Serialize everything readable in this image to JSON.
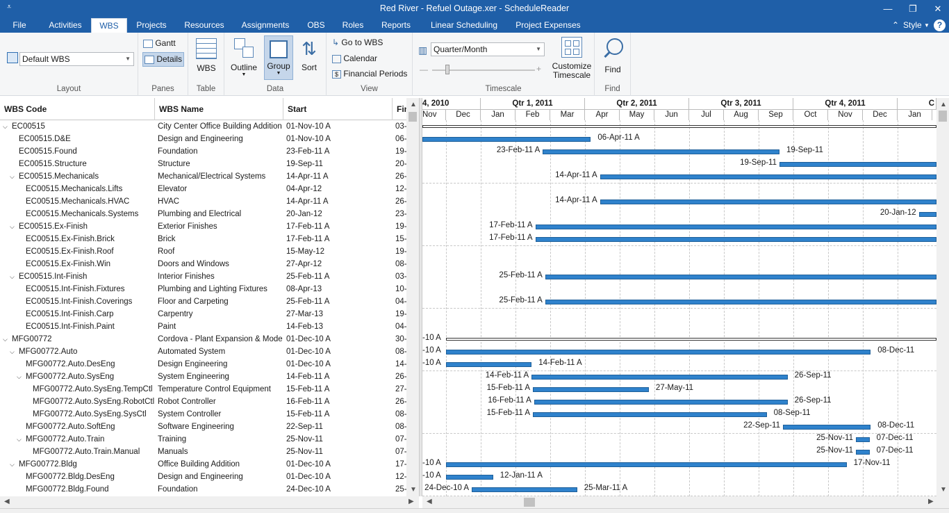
{
  "window": {
    "title": "Red River - Refuel Outage.xer - ScheduleReader",
    "quick_access": "⩡",
    "minimize": "—",
    "restore": "❐",
    "close": "✕"
  },
  "menu": {
    "tabs": [
      "File",
      "Activities",
      "WBS",
      "Projects",
      "Resources",
      "Assignments",
      "OBS",
      "Roles",
      "Reports",
      "Linear Scheduling",
      "Project Expenses"
    ],
    "active": "WBS",
    "style_label": "Style",
    "help_label": "?"
  },
  "ribbon": {
    "layout": {
      "value": "Default WBS",
      "label": "Layout"
    },
    "panes": {
      "gantt": "Gantt",
      "details": "Details",
      "label": "Panes"
    },
    "table": {
      "wbs": "WBS",
      "label": "Table"
    },
    "data": {
      "outline": "Outline",
      "group": "Group",
      "sort": "Sort",
      "label": "Data"
    },
    "view": {
      "goto": "Go to WBS",
      "calendar": "Calendar",
      "financial": "Financial Periods",
      "label": "View"
    },
    "timescale": {
      "value": "Quarter/Month",
      "customize_1": "Customize",
      "customize_2": "Timescale",
      "label": "Timescale"
    },
    "find": {
      "button": "Find",
      "label": "Find"
    }
  },
  "grid": {
    "columns": [
      "WBS Code",
      "WBS Name",
      "Start",
      "Fin"
    ],
    "rows": [
      {
        "code": "EC00515",
        "name": "City Center Office Building Addition",
        "start": "01-Nov-10 A",
        "fin": "03-",
        "level": 0,
        "exp": true
      },
      {
        "code": "EC00515.D&E",
        "name": "Design and Engineering",
        "start": "01-Nov-10 A",
        "fin": "06-",
        "level": 1,
        "exp": false
      },
      {
        "code": "EC00515.Found",
        "name": "Foundation",
        "start": "23-Feb-11 A",
        "fin": "19-",
        "level": 1,
        "exp": false
      },
      {
        "code": "EC00515.Structure",
        "name": "Structure",
        "start": "19-Sep-11",
        "fin": "20-",
        "level": 1,
        "exp": false
      },
      {
        "code": "EC00515.Mechanicals",
        "name": "Mechanical/Electrical Systems",
        "start": "14-Apr-11 A",
        "fin": "26-",
        "level": 1,
        "exp": true
      },
      {
        "code": "EC00515.Mechanicals.Lifts",
        "name": "Elevator",
        "start": "04-Apr-12",
        "fin": "12-",
        "level": 2,
        "exp": false
      },
      {
        "code": "EC00515.Mechanicals.HVAC",
        "name": "HVAC",
        "start": "14-Apr-11 A",
        "fin": "26-",
        "level": 2,
        "exp": false
      },
      {
        "code": "EC00515.Mechanicals.Systems",
        "name": "Plumbing and Electrical",
        "start": "20-Jan-12",
        "fin": "23-",
        "level": 2,
        "exp": false
      },
      {
        "code": "EC00515.Ex-Finish",
        "name": "Exterior Finishes",
        "start": "17-Feb-11 A",
        "fin": "19-",
        "level": 1,
        "exp": true
      },
      {
        "code": "EC00515.Ex-Finish.Brick",
        "name": "Brick",
        "start": "17-Feb-11 A",
        "fin": "15-",
        "level": 2,
        "exp": false
      },
      {
        "code": "EC00515.Ex-Finish.Roof",
        "name": "Roof",
        "start": "15-May-12",
        "fin": "19-",
        "level": 2,
        "exp": false
      },
      {
        "code": "EC00515.Ex-Finish.Win",
        "name": "Doors and Windows",
        "start": "27-Apr-12",
        "fin": "08-",
        "level": 2,
        "exp": false
      },
      {
        "code": "EC00515.Int-Finish",
        "name": "Interior Finishes",
        "start": "25-Feb-11 A",
        "fin": "03-",
        "level": 1,
        "exp": true
      },
      {
        "code": "EC00515.Int-Finish.Fixtures",
        "name": "Plumbing and Lighting Fixtures",
        "start": "08-Apr-13",
        "fin": "10-",
        "level": 2,
        "exp": false
      },
      {
        "code": "EC00515.Int-Finish.Coverings",
        "name": "Floor and Carpeting",
        "start": "25-Feb-11 A",
        "fin": "04-",
        "level": 2,
        "exp": false
      },
      {
        "code": "EC00515.Int-Finish.Carp",
        "name": "Carpentry",
        "start": "27-Mar-13",
        "fin": "19-",
        "level": 2,
        "exp": false
      },
      {
        "code": "EC00515.Int-Finish.Paint",
        "name": "Paint",
        "start": "14-Feb-13",
        "fin": "04-",
        "level": 2,
        "exp": false
      },
      {
        "code": "MFG00772",
        "name": "Cordova - Plant Expansion & Moderni",
        "start": "01-Dec-10 A",
        "fin": "30-",
        "level": 0,
        "exp": true
      },
      {
        "code": "MFG00772.Auto",
        "name": "Automated System",
        "start": "01-Dec-10 A",
        "fin": "08-",
        "level": 1,
        "exp": true
      },
      {
        "code": "MFG00772.Auto.DesEng",
        "name": "Design Engineering",
        "start": "01-Dec-10 A",
        "fin": "14-",
        "level": 2,
        "exp": false
      },
      {
        "code": "MFG00772.Auto.SysEng",
        "name": "System Engineering",
        "start": "14-Feb-11 A",
        "fin": "26-",
        "level": 2,
        "exp": true
      },
      {
        "code": "MFG00772.Auto.SysEng.TempCtl",
        "name": "Temperature Control Equipment",
        "start": "15-Feb-11 A",
        "fin": "27-",
        "level": 3,
        "exp": false
      },
      {
        "code": "MFG00772.Auto.SysEng.RobotCtl",
        "name": "Robot Controller",
        "start": "16-Feb-11 A",
        "fin": "26-",
        "level": 3,
        "exp": false
      },
      {
        "code": "MFG00772.Auto.SysEng.SysCtl",
        "name": "System Controller",
        "start": "15-Feb-11 A",
        "fin": "08-",
        "level": 3,
        "exp": false
      },
      {
        "code": "MFG00772.Auto.SoftEng",
        "name": "Software Engineering",
        "start": "22-Sep-11",
        "fin": "08-",
        "level": 2,
        "exp": false
      },
      {
        "code": "MFG00772.Auto.Train",
        "name": "Training",
        "start": "25-Nov-11",
        "fin": "07-",
        "level": 2,
        "exp": true
      },
      {
        "code": "MFG00772.Auto.Train.Manual",
        "name": "Manuals",
        "start": "25-Nov-11",
        "fin": "07-",
        "level": 3,
        "exp": false
      },
      {
        "code": "MFG00772.Bldg",
        "name": "Office Building Addition",
        "start": "01-Dec-10 A",
        "fin": "17-",
        "level": 1,
        "exp": true
      },
      {
        "code": "MFG00772.Bldg.DesEng",
        "name": "Design and Engineering",
        "start": "01-Dec-10 A",
        "fin": "12-",
        "level": 2,
        "exp": false
      },
      {
        "code": "MFG00772.Bldg.Found",
        "name": "Foundation",
        "start": "24-Dec-10 A",
        "fin": "25-",
        "level": 2,
        "exp": false
      }
    ]
  },
  "timescale": {
    "quarters": [
      "4, 2010",
      "Qtr 1, 2011",
      "Qtr 2, 2011",
      "Qtr 3, 2011",
      "Qtr 4, 2011",
      "C"
    ],
    "months": [
      "Nov",
      "Dec",
      "Jan",
      "Feb",
      "Mar",
      "Apr",
      "May",
      "Jun",
      "Jul",
      "Aug",
      "Sep",
      "Oct",
      "Nov",
      "Dec",
      "Jan"
    ]
  },
  "bars": [
    {
      "row": 0,
      "type": "summary",
      "start": "2010-11-01",
      "end": null,
      "left": "",
      "right": ""
    },
    {
      "row": 1,
      "type": "bar",
      "start": "2010-11-01",
      "end": "2011-04-06",
      "left": "",
      "right": "06-Apr-11 A"
    },
    {
      "row": 2,
      "type": "bar",
      "start": "2011-02-23",
      "end": "2011-09-19",
      "left": "23-Feb-11 A",
      "right": "19-Sep-11"
    },
    {
      "row": 3,
      "type": "bar",
      "start": "2011-09-19",
      "end": null,
      "left": "19-Sep-11",
      "right": ""
    },
    {
      "row": 4,
      "type": "bar",
      "start": "2011-04-14",
      "end": null,
      "left": "14-Apr-11 A",
      "right": ""
    },
    {
      "row": 6,
      "type": "bar",
      "start": "2011-04-14",
      "end": null,
      "left": "14-Apr-11 A",
      "right": ""
    },
    {
      "row": 7,
      "type": "bar",
      "start": "2012-01-20",
      "end": null,
      "left": "20-Jan-12",
      "right": ""
    },
    {
      "row": 8,
      "type": "bar",
      "start": "2011-02-17",
      "end": null,
      "left": "17-Feb-11 A",
      "right": ""
    },
    {
      "row": 9,
      "type": "bar",
      "start": "2011-02-17",
      "end": null,
      "left": "17-Feb-11 A",
      "right": ""
    },
    {
      "row": 12,
      "type": "bar",
      "start": "2011-02-25",
      "end": null,
      "left": "25-Feb-11 A",
      "right": ""
    },
    {
      "row": 14,
      "type": "bar",
      "start": "2011-02-25",
      "end": null,
      "left": "25-Feb-11 A",
      "right": ""
    },
    {
      "row": 17,
      "type": "summary",
      "start": "2010-12-01",
      "end": null,
      "left": "-10 A",
      "right": ""
    },
    {
      "row": 18,
      "type": "bar",
      "start": "2010-12-01",
      "end": "2011-12-08",
      "left": "-10 A",
      "right": "08-Dec-11"
    },
    {
      "row": 19,
      "type": "bar",
      "start": "2010-12-01",
      "end": "2011-02-14",
      "left": "-10 A",
      "right": "14-Feb-11 A"
    },
    {
      "row": 20,
      "type": "bar",
      "start": "2011-02-14",
      "end": "2011-09-26",
      "left": "14-Feb-11 A",
      "right": "26-Sep-11"
    },
    {
      "row": 21,
      "type": "bar",
      "start": "2011-02-15",
      "end": "2011-05-27",
      "left": "15-Feb-11 A",
      "right": "27-May-11"
    },
    {
      "row": 22,
      "type": "bar",
      "start": "2011-02-16",
      "end": "2011-09-26",
      "left": "16-Feb-11 A",
      "right": "26-Sep-11"
    },
    {
      "row": 23,
      "type": "bar",
      "start": "2011-02-15",
      "end": "2011-09-08",
      "left": "15-Feb-11 A",
      "right": "08-Sep-11"
    },
    {
      "row": 24,
      "type": "bar",
      "start": "2011-09-22",
      "end": "2011-12-08",
      "left": "22-Sep-11",
      "right": "08-Dec-11"
    },
    {
      "row": 25,
      "type": "bar",
      "start": "2011-11-25",
      "end": "2011-12-07",
      "left": "25-Nov-11",
      "right": "07-Dec-11"
    },
    {
      "row": 26,
      "type": "bar",
      "start": "2011-11-25",
      "end": "2011-12-07",
      "left": "25-Nov-11",
      "right": "07-Dec-11"
    },
    {
      "row": 27,
      "type": "bar",
      "start": "2010-12-01",
      "end": "2011-11-17",
      "left": "-10 A",
      "right": "17-Nov-11"
    },
    {
      "row": 28,
      "type": "bar",
      "start": "2010-12-01",
      "end": "2011-01-12",
      "left": "-10 A",
      "right": "12-Jan-11 A"
    },
    {
      "row": 29,
      "type": "bar",
      "start": "2010-12-24",
      "end": "2011-03-25",
      "left": "24-Dec-10 A",
      "right": "25-Mar-11 A"
    }
  ]
}
